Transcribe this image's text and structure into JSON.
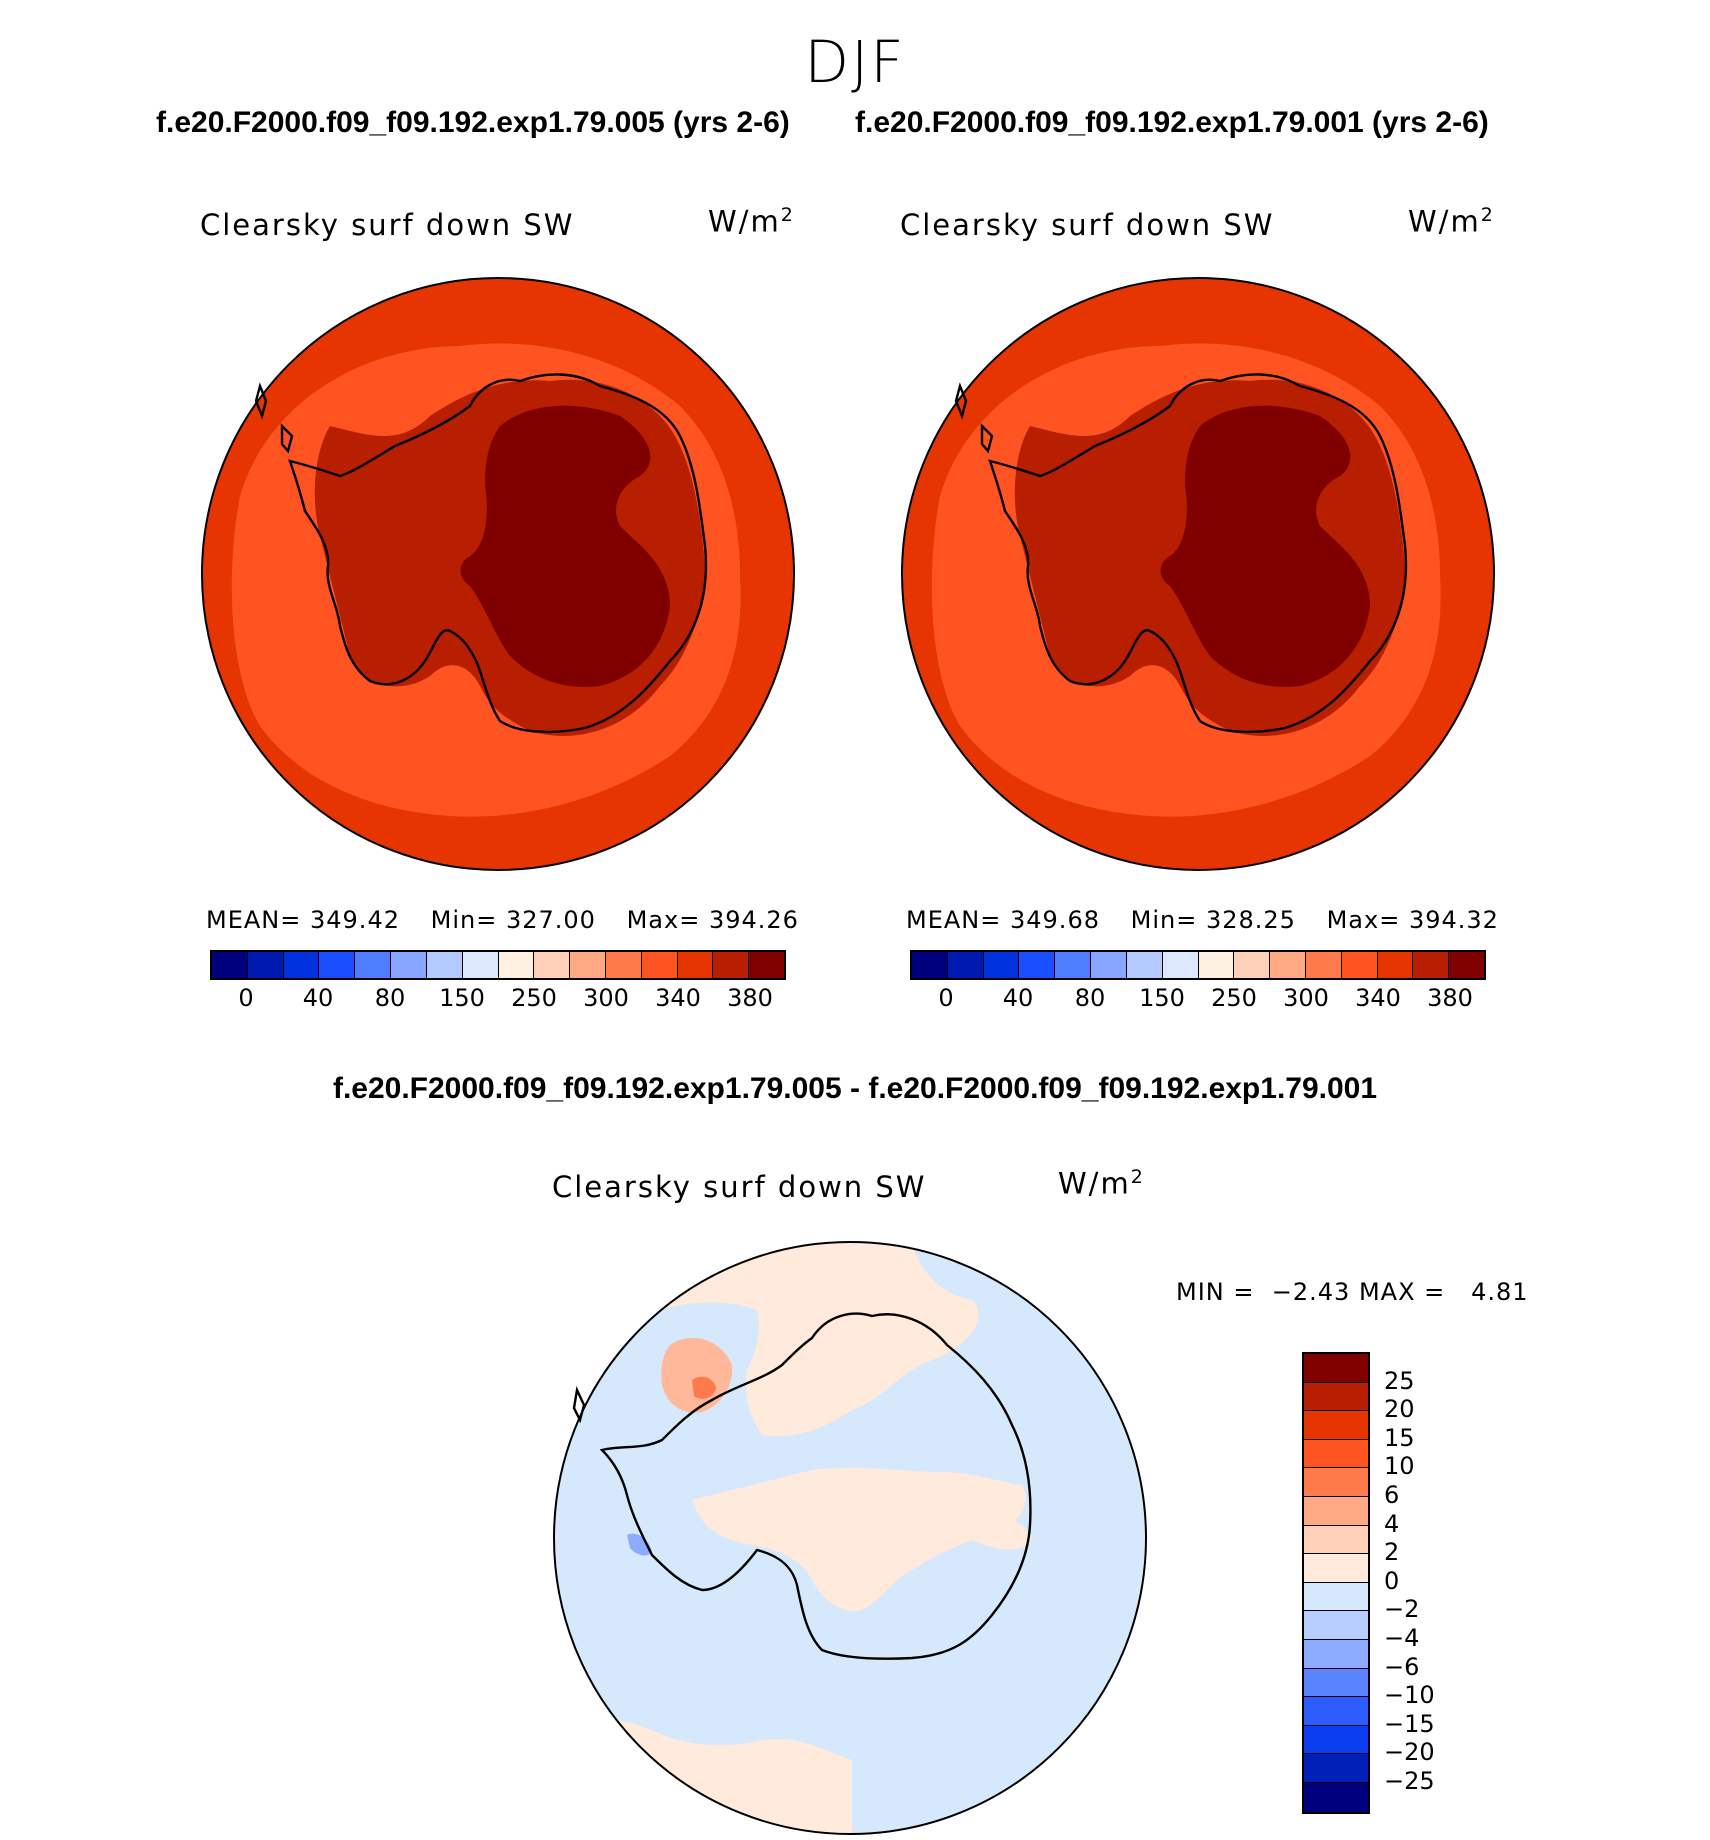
{
  "figure": {
    "title": "DJF"
  },
  "panels": [
    {
      "case_title": "f.e20.F2000.f09_f09.192.exp1.79.005 (yrs 2-6)",
      "variable": "Clearsky surf down SW",
      "units": "W/m",
      "units_sup": "2",
      "stats": {
        "mean_label": "MEAN=",
        "mean": "349.42",
        "min_label": "Min=",
        "min": "327.00",
        "max_label": "Max=",
        "max": "394.26"
      }
    },
    {
      "case_title": "f.e20.F2000.f09_f09.192.exp1.79.001 (yrs 2-6)",
      "variable": "Clearsky surf down SW",
      "units": "W/m",
      "units_sup": "2",
      "stats": {
        "mean_label": "MEAN=",
        "mean": "349.68",
        "min_label": "Min=",
        "min": "328.25",
        "max_label": "Max=",
        "max": "394.32"
      }
    }
  ],
  "abs_colorbar": {
    "colors": [
      "#00007f",
      "#0019b0",
      "#0033dd",
      "#1a4fff",
      "#4f7dff",
      "#86a6ff",
      "#b3caff",
      "#dbe8ff",
      "#fff0e1",
      "#ffcfb7",
      "#ffa985",
      "#ff7a4a",
      "#ff5422",
      "#e63500",
      "#b81e00",
      "#800000"
    ],
    "tick_labels": [
      "0",
      "40",
      "80",
      "150",
      "250",
      "300",
      "340",
      "380"
    ]
  },
  "difference": {
    "title": "f.e20.F2000.f09_f09.192.exp1.79.005 - f.e20.F2000.f09_f09.192.exp1.79.001",
    "variable": "Clearsky surf down SW",
    "units": "W/m",
    "units_sup": "2",
    "min_label": "MIN =",
    "min": "−2.43",
    "max_label": "MAX =",
    "max": "4.81",
    "colorbar": {
      "colors_top_to_bottom": [
        "#800000",
        "#b81e00",
        "#e63500",
        "#ff5422",
        "#ff7a4a",
        "#ffa985",
        "#ffcfb7",
        "#ffeadb",
        "#d6e8fb",
        "#b7ceff",
        "#8cabff",
        "#5a84ff",
        "#2c5cff",
        "#0b3ef0",
        "#0020b8",
        "#00007f"
      ],
      "tick_labels_top_to_bottom": [
        "25",
        "20",
        "15",
        "10",
        "6",
        "4",
        "2",
        "0",
        "−2",
        "−4",
        "−6",
        "−10",
        "−15",
        "−20",
        "−25"
      ]
    }
  },
  "map_colors": {
    "abs_level_outer": "#e63500",
    "abs_level_ocean": "#ff5422",
    "abs_level_coast": "#b81e00",
    "abs_level_plateau": "#800000",
    "diff_neg": "#d6e8fb",
    "diff_pos": "#ffeadb",
    "diff_pos2": "#ffb899",
    "diff_pos3": "#ff7a4a",
    "diff_neg2": "#8cabff"
  }
}
